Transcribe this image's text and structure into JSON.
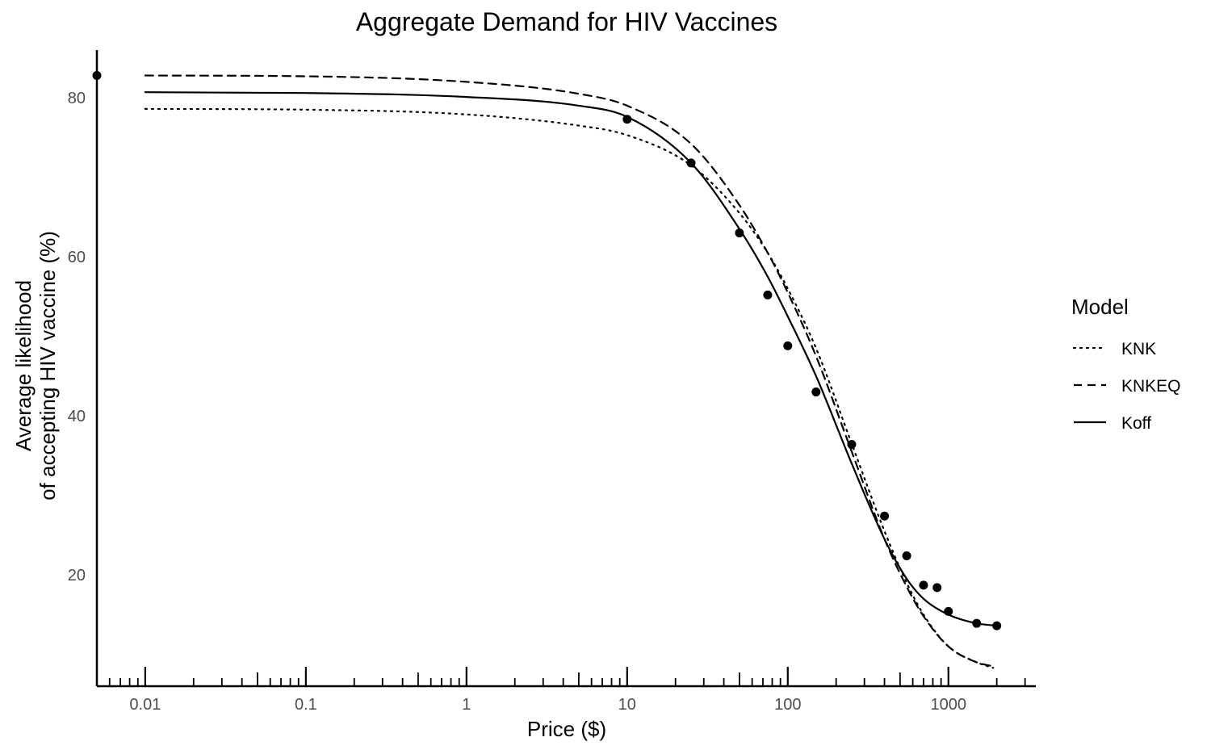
{
  "chart_data": {
    "type": "line",
    "title": "Aggregate Demand for HIV Vaccines",
    "xlabel": "Price ($)",
    "ylabel": [
      "Average likelihood",
      "of accepting HIV vaccine (%)"
    ],
    "x_scale": "log10",
    "xlim": [
      0.005,
      3500
    ],
    "ylim": [
      6,
      86
    ],
    "x_ticks": [
      0.01,
      0.1,
      1,
      10,
      100,
      1000
    ],
    "x_tick_labels": [
      "0.01",
      "0.1",
      "1",
      "10",
      "100",
      "1000"
    ],
    "y_ticks": [
      20,
      40,
      60,
      80
    ],
    "y_tick_labels": [
      "20",
      "40",
      "60",
      "80"
    ],
    "grid": false,
    "legend": {
      "title": "Model",
      "position": "right"
    },
    "observed_points": {
      "x": [
        0.005,
        10,
        25,
        50,
        75,
        100,
        150,
        250,
        400,
        550,
        700,
        850,
        1000,
        1500,
        2000
      ],
      "y": [
        82.8,
        77.3,
        71.8,
        63.0,
        55.2,
        48.8,
        43.0,
        36.4,
        27.4,
        22.4,
        18.7,
        18.4,
        15.4,
        13.9,
        13.6
      ]
    },
    "series": [
      {
        "name": "KNK",
        "style": "dotted",
        "x": [
          0.01,
          0.1,
          1,
          5,
          10,
          25,
          50,
          75,
          100,
          150,
          250,
          400,
          550,
          700,
          1000,
          1500,
          1900
        ],
        "y": [
          78.6,
          78.5,
          77.9,
          76.5,
          75.3,
          71.5,
          65.5,
          60.5,
          56.0,
          48.5,
          36.5,
          25.5,
          19.0,
          15.0,
          11.0,
          9.0,
          8.3
        ]
      },
      {
        "name": "KNKEQ",
        "style": "dashed",
        "x": [
          0.01,
          0.1,
          1,
          5,
          10,
          25,
          50,
          75,
          100,
          150,
          250,
          400,
          550,
          700,
          1000,
          1500,
          1900
        ],
        "y": [
          82.8,
          82.7,
          82.0,
          80.5,
          79.0,
          74.2,
          66.5,
          60.5,
          55.5,
          47.5,
          35.5,
          24.5,
          18.5,
          14.8,
          11.0,
          9.0,
          8.5
        ]
      },
      {
        "name": "Koff",
        "style": "solid",
        "x": [
          0.01,
          0.1,
          1,
          5,
          10,
          25,
          50,
          75,
          100,
          150,
          250,
          400,
          550,
          700,
          1000,
          1500,
          2000
        ],
        "y": [
          80.7,
          80.6,
          80.1,
          79.0,
          77.6,
          71.8,
          63.5,
          57.5,
          52.5,
          45.0,
          34.0,
          24.5,
          19.5,
          17.0,
          15.0,
          13.9,
          13.6
        ]
      }
    ]
  }
}
